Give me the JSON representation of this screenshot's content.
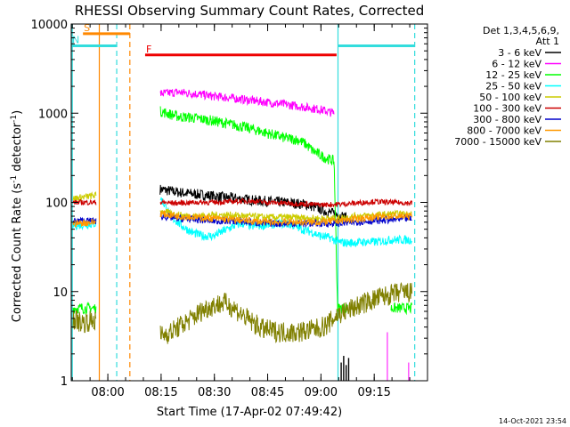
{
  "chart_data": {
    "type": "line",
    "title": "RHESSI Observing Summary Count Rates, Corrected",
    "xlabel": "Start Time (17-Apr-02 07:49:42)",
    "ylabel_main": "Corrected Count Rate (s",
    "ylabel_sup1": "-1",
    "ylabel_mid": " detector",
    "ylabel_sup2": "-1",
    "ylabel_end": ")",
    "y_scale": "log",
    "ylim": [
      1,
      10000
    ],
    "xlim_minutes_after_start": [
      0,
      100.3
    ],
    "x_ticks": [
      {
        "label": "08:00",
        "t": 10.3
      },
      {
        "label": "08:15",
        "t": 25.3
      },
      {
        "label": "08:30",
        "t": 40.3
      },
      {
        "label": "08:45",
        "t": 55.3
      },
      {
        "label": "09:00",
        "t": 70.3
      },
      {
        "label": "09:15",
        "t": 85.3
      }
    ],
    "y_ticks": [
      {
        "label": "1",
        "v": 1
      },
      {
        "label": "10",
        "v": 10
      },
      {
        "label": "100",
        "v": 100
      },
      {
        "label": "1000",
        "v": 1000
      },
      {
        "label": "10000",
        "v": 10000
      }
    ],
    "legend_placement": "outside-right",
    "legend_title": [
      "Det 1,3,4,5,6,9,",
      "Att 1"
    ],
    "timestamp": "14-Oct-2021 23:54",
    "series": [
      {
        "name": "3 - 6 keV",
        "color": "#000000",
        "points": [
          [
            25,
            140
          ],
          [
            30,
            130
          ],
          [
            38,
            120
          ],
          [
            45,
            112
          ],
          [
            52,
            105
          ],
          [
            60,
            100
          ],
          [
            66,
            95
          ],
          [
            70,
            85
          ],
          [
            72,
            78
          ],
          [
            74,
            75
          ],
          [
            78,
            66
          ]
        ]
      },
      {
        "name": "6 - 12 keV",
        "color": "#ff00ff",
        "points": [
          [
            25,
            1650
          ],
          [
            30,
            1720
          ],
          [
            35,
            1650
          ],
          [
            40,
            1550
          ],
          [
            45,
            1480
          ],
          [
            50,
            1400
          ],
          [
            55,
            1330
          ],
          [
            60,
            1260
          ],
          [
            65,
            1180
          ],
          [
            70,
            1100
          ],
          [
            72,
            1050
          ],
          [
            74,
            1000
          ]
        ]
      },
      {
        "name": "12 - 25 keV",
        "color": "#00ff00",
        "points": [
          [
            0.5,
            6.5
          ],
          [
            7,
            6.5
          ],
          [
            25,
            1050
          ],
          [
            30,
            920
          ],
          [
            35,
            880
          ],
          [
            40,
            820
          ],
          [
            45,
            750
          ],
          [
            50,
            680
          ],
          [
            55,
            600
          ],
          [
            60,
            530
          ],
          [
            64,
            500
          ],
          [
            66,
            450
          ],
          [
            68,
            380
          ],
          [
            70,
            340
          ],
          [
            72,
            310
          ],
          [
            74,
            290
          ],
          [
            75,
            6.5
          ],
          [
            78,
            6.5
          ],
          [
            90,
            6.5
          ],
          [
            96,
            6.5
          ]
        ]
      },
      {
        "name": "25 - 50 keV",
        "color": "#00ffff",
        "points": [
          [
            0.5,
            55
          ],
          [
            7,
            58
          ],
          [
            25,
            115
          ],
          [
            28,
            70
          ],
          [
            31,
            55
          ],
          [
            34,
            46
          ],
          [
            37,
            42
          ],
          [
            40,
            42
          ],
          [
            43,
            48
          ],
          [
            46,
            55
          ],
          [
            48,
            58
          ],
          [
            51,
            54
          ],
          [
            55,
            56
          ],
          [
            59,
            58
          ],
          [
            62,
            56
          ],
          [
            65,
            50
          ],
          [
            68,
            46
          ],
          [
            70,
            42
          ],
          [
            73,
            40
          ],
          [
            75,
            36
          ],
          [
            78,
            35
          ],
          [
            82,
            36
          ],
          [
            86,
            36
          ],
          [
            90,
            38
          ],
          [
            93,
            38
          ],
          [
            96,
            38
          ]
        ]
      },
      {
        "name": "50 - 100 keV",
        "color": "#cccc00",
        "points": [
          [
            0.5,
            110
          ],
          [
            7,
            120
          ],
          [
            25,
            80
          ],
          [
            30,
            72
          ],
          [
            35,
            70
          ],
          [
            40,
            72
          ],
          [
            45,
            72
          ],
          [
            50,
            70
          ],
          [
            55,
            68
          ],
          [
            60,
            68
          ],
          [
            65,
            67
          ],
          [
            70,
            66
          ],
          [
            75,
            66
          ],
          [
            80,
            70
          ],
          [
            86,
            72
          ],
          [
            90,
            74
          ],
          [
            96,
            74
          ]
        ]
      },
      {
        "name": "100 - 300 keV",
        "color": "#cc0000",
        "points": [
          [
            0.5,
            100
          ],
          [
            7,
            100
          ],
          [
            25,
            100
          ],
          [
            30,
            98
          ],
          [
            35,
            100
          ],
          [
            40,
            100
          ],
          [
            45,
            102
          ],
          [
            50,
            104
          ],
          [
            55,
            100
          ],
          [
            60,
            98
          ],
          [
            65,
            96
          ],
          [
            70,
            94
          ],
          [
            75,
            95
          ],
          [
            80,
            98
          ],
          [
            85,
            102
          ],
          [
            90,
            100
          ],
          [
            96,
            98
          ]
        ]
      },
      {
        "name": "300 - 800 keV",
        "color": "#0000cc",
        "points": [
          [
            0.5,
            62
          ],
          [
            7,
            62
          ],
          [
            25,
            70
          ],
          [
            30,
            66
          ],
          [
            35,
            64
          ],
          [
            40,
            62
          ],
          [
            45,
            62
          ],
          [
            50,
            60
          ],
          [
            55,
            58
          ],
          [
            60,
            58
          ],
          [
            65,
            58
          ],
          [
            70,
            58
          ],
          [
            75,
            58
          ],
          [
            80,
            60
          ],
          [
            85,
            62
          ],
          [
            90,
            64
          ],
          [
            96,
            66
          ]
        ]
      },
      {
        "name": "800 - 7000 keV",
        "color": "#ff9900",
        "points": [
          [
            0.5,
            58
          ],
          [
            7,
            60
          ],
          [
            25,
            75
          ],
          [
            30,
            70
          ],
          [
            35,
            68
          ],
          [
            40,
            66
          ],
          [
            45,
            64
          ],
          [
            50,
            62
          ],
          [
            55,
            60
          ],
          [
            60,
            60
          ],
          [
            65,
            60
          ],
          [
            70,
            60
          ],
          [
            75,
            62
          ],
          [
            80,
            65
          ],
          [
            85,
            68
          ],
          [
            90,
            70
          ],
          [
            96,
            70
          ]
        ]
      },
      {
        "name": "7000 - 15000 keV",
        "color": "#808000",
        "points": [
          [
            0.5,
            5
          ],
          [
            3,
            4.5
          ],
          [
            7,
            4.8
          ],
          [
            25,
            3.2
          ],
          [
            28,
            3.5
          ],
          [
            31,
            4.2
          ],
          [
            34,
            5
          ],
          [
            37,
            6.2
          ],
          [
            40,
            7
          ],
          [
            43,
            7.5
          ],
          [
            46,
            6.5
          ],
          [
            48,
            5.5
          ],
          [
            51,
            4.5
          ],
          [
            54,
            3.8
          ],
          [
            57,
            3.6
          ],
          [
            60,
            3.5
          ],
          [
            63,
            3.5
          ],
          [
            66,
            3.6
          ],
          [
            69,
            3.8
          ],
          [
            72,
            4.2
          ],
          [
            75,
            5.5
          ],
          [
            78,
            6.2
          ],
          [
            81,
            7
          ],
          [
            84,
            7.8
          ],
          [
            87,
            8.6
          ],
          [
            90,
            9.2
          ],
          [
            93,
            9.8
          ],
          [
            96,
            9.6
          ]
        ]
      }
    ],
    "annotations": [
      {
        "label": "S",
        "color": "#ff8800",
        "t_start": 3.3,
        "t_end": 16.5,
        "level": 7800
      },
      {
        "label": "N",
        "color": "#33dddd",
        "t_start": 0.0,
        "t_end": 12.8,
        "level": 5700
      },
      {
        "label": "",
        "color": "#33dddd",
        "t_start": 75.1,
        "t_end": 96.7,
        "level": 5700
      },
      {
        "label": "F",
        "color": "#ee0000",
        "t_start": 20.8,
        "t_end": 74.7,
        "level": 4500
      }
    ],
    "vlines": [
      {
        "t": 7.9,
        "color": "#ff8800",
        "style": "solid"
      },
      {
        "t": 16.5,
        "color": "#ff8800",
        "style": "dashed"
      },
      {
        "t": 0.3,
        "color": "#33dddd",
        "style": "solid"
      },
      {
        "t": 12.8,
        "color": "#33dddd",
        "style": "dashed"
      },
      {
        "t": 75.1,
        "color": "#33dddd",
        "style": "solid"
      },
      {
        "t": 96.7,
        "color": "#33dddd",
        "style": "dashed"
      }
    ]
  }
}
